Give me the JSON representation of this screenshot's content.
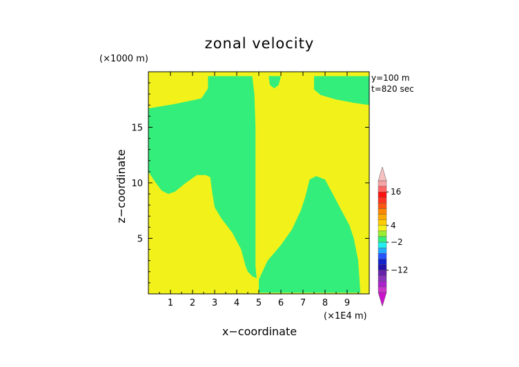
{
  "chart_data": {
    "type": "heatmap",
    "title": "zonal velocity",
    "xlabel": "x−coordinate",
    "ylabel": "z−coordinate",
    "x_scale_label": "(×1E4 m)",
    "y_scale_label": "(×1000 m)",
    "annotations": [
      "y=100 m",
      "t=820 sec"
    ],
    "xlim": [
      0,
      10
    ],
    "ylim": [
      0,
      20
    ],
    "x_ticks": [
      "1",
      "2",
      "3",
      "4",
      "5",
      "6",
      "7",
      "8",
      "9"
    ],
    "y_ticks": [
      "5",
      "10",
      "15"
    ],
    "regions": [
      {
        "name": "negative-left-upper",
        "value_band": "-2 to 0",
        "color": "#33ee7a",
        "polygon": [
          [
            0,
            16.7
          ],
          [
            1.2,
            17.1
          ],
          [
            2.4,
            17.6
          ],
          [
            2.7,
            18.5
          ],
          [
            2.7,
            19.6
          ],
          [
            4.7,
            19.6
          ],
          [
            4.8,
            18.0
          ],
          [
            4.85,
            15.0
          ],
          [
            4.85,
            2.5
          ],
          [
            4.9,
            1.4
          ],
          [
            5.0,
            1.3
          ],
          [
            4.7,
            1.6
          ],
          [
            4.5,
            2.0
          ],
          [
            4.4,
            2.5
          ],
          [
            4.2,
            4.0
          ],
          [
            3.8,
            5.5
          ],
          [
            3.3,
            6.8
          ],
          [
            3.0,
            7.8
          ],
          [
            2.9,
            9.0
          ],
          [
            2.8,
            10.5
          ],
          [
            2.6,
            10.7
          ],
          [
            2.2,
            10.7
          ],
          [
            1.7,
            10.0
          ],
          [
            1.2,
            9.2
          ],
          [
            0.9,
            9.0
          ],
          [
            0.6,
            9.3
          ],
          [
            0.3,
            10.1
          ],
          [
            0,
            11.0
          ]
        ]
      },
      {
        "name": "negative-right-lower",
        "value_band": "-2 to 0",
        "color": "#33ee7a",
        "polygon": [
          [
            5.0,
            1.3
          ],
          [
            5.4,
            3.0
          ],
          [
            6.0,
            4.4
          ],
          [
            6.5,
            5.8
          ],
          [
            6.9,
            7.5
          ],
          [
            7.1,
            8.7
          ],
          [
            7.3,
            10.3
          ],
          [
            7.6,
            10.6
          ],
          [
            8.0,
            10.3
          ],
          [
            8.4,
            8.8
          ],
          [
            8.8,
            7.3
          ],
          [
            9.1,
            6.2
          ],
          [
            9.3,
            5.0
          ],
          [
            9.5,
            3.0
          ],
          [
            9.6,
            0.1
          ],
          [
            5.0,
            0.1
          ]
        ]
      },
      {
        "name": "negative-top-center",
        "value_band": "-2 to 0",
        "color": "#33ee7a",
        "polygon": [
          [
            5.45,
            19.6
          ],
          [
            5.5,
            18.8
          ],
          [
            5.7,
            18.5
          ],
          [
            5.9,
            18.8
          ],
          [
            6.0,
            19.6
          ]
        ]
      },
      {
        "name": "negative-top-right",
        "value_band": "-2 to 0",
        "color": "#33ee7a",
        "polygon": [
          [
            7.5,
            19.6
          ],
          [
            7.5,
            18.4
          ],
          [
            7.8,
            17.9
          ],
          [
            8.5,
            17.5
          ],
          [
            9.3,
            17.2
          ],
          [
            10.0,
            17.0
          ],
          [
            10.0,
            19.6
          ]
        ]
      }
    ],
    "background_value_band": "0 to 4",
    "background_color": "#f2f21a",
    "colorbar": {
      "tick_labels": [
        "16",
        "4",
        "−2",
        "−12"
      ],
      "tick_values": [
        16,
        4,
        -2,
        -12
      ],
      "levels": [
        {
          "lo": 18,
          "hi": 20,
          "color": "#f7a3a3"
        },
        {
          "lo": 16,
          "hi": 18,
          "color": "#ff6666"
        },
        {
          "lo": 14,
          "hi": 16,
          "color": "#ff1111"
        },
        {
          "lo": 12,
          "hi": 14,
          "color": "#ff3322"
        },
        {
          "lo": 10,
          "hi": 12,
          "color": "#ff5511"
        },
        {
          "lo": 8,
          "hi": 10,
          "color": "#ff8800"
        },
        {
          "lo": 6,
          "hi": 8,
          "color": "#ffaa00"
        },
        {
          "lo": 4,
          "hi": 6,
          "color": "#ffcc00"
        },
        {
          "lo": 2,
          "hi": 4,
          "color": "#f2f21a"
        },
        {
          "lo": 0,
          "hi": 2,
          "color": "#99ee33"
        },
        {
          "lo": -2,
          "hi": 0,
          "color": "#33ee7a"
        },
        {
          "lo": -4,
          "hi": -2,
          "color": "#22eeee"
        },
        {
          "lo": -6,
          "hi": -4,
          "color": "#22aaff"
        },
        {
          "lo": -8,
          "hi": -6,
          "color": "#2255ff"
        },
        {
          "lo": -10,
          "hi": -8,
          "color": "#1122cc"
        },
        {
          "lo": -12,
          "hi": -10,
          "color": "#2211aa"
        },
        {
          "lo": -14,
          "hi": -12,
          "color": "#6622aa"
        },
        {
          "lo": -16,
          "hi": -14,
          "color": "#8833bb"
        },
        {
          "lo": -18,
          "hi": -16,
          "color": "#aa22cc"
        },
        {
          "lo": -20,
          "hi": -18,
          "color": "#cc33cc"
        }
      ],
      "top_arrow_color": "#f7c0c0",
      "bottom_arrow_color": "#cc11cc"
    }
  }
}
